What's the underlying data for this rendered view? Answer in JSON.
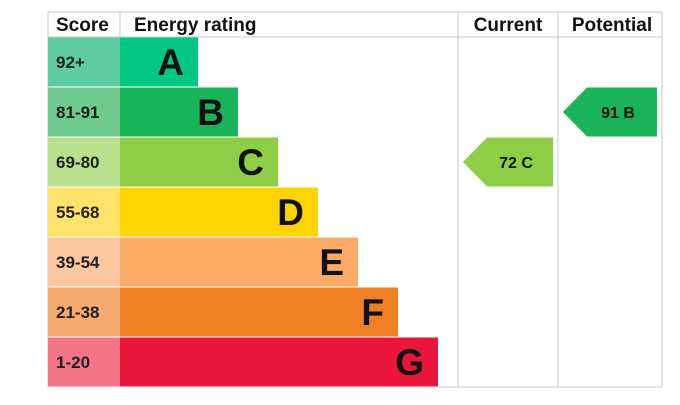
{
  "chart_data": {
    "type": "table",
    "headers": {
      "score": "Score",
      "rating": "Energy rating",
      "current": "Current",
      "potential": "Potential"
    },
    "bands": [
      {
        "score": "92+",
        "letter": "A",
        "color": "#00c781",
        "score_bg": "#5dcca3"
      },
      {
        "score": "81-91",
        "letter": "B",
        "color": "#19b459",
        "score_bg": "#6dca8c"
      },
      {
        "score": "69-80",
        "letter": "C",
        "color": "#8dce46",
        "score_bg": "#b9e08c"
      },
      {
        "score": "55-68",
        "letter": "D",
        "color": "#ffd500",
        "score_bg": "#ffe26a"
      },
      {
        "score": "39-54",
        "letter": "E",
        "color": "#fcaa65",
        "score_bg": "#fcc79e"
      },
      {
        "score": "21-38",
        "letter": "F",
        "color": "#ef8023",
        "score_bg": "#f5ab6d"
      },
      {
        "score": "1-20",
        "letter": "G",
        "color": "#e9153b",
        "score_bg": "#f27486"
      }
    ],
    "current": {
      "value": 72,
      "band": "C",
      "label": "72 C",
      "color": "#8dce46"
    },
    "potential": {
      "value": 91,
      "band": "B",
      "label": "91 B",
      "color": "#19b459"
    }
  }
}
